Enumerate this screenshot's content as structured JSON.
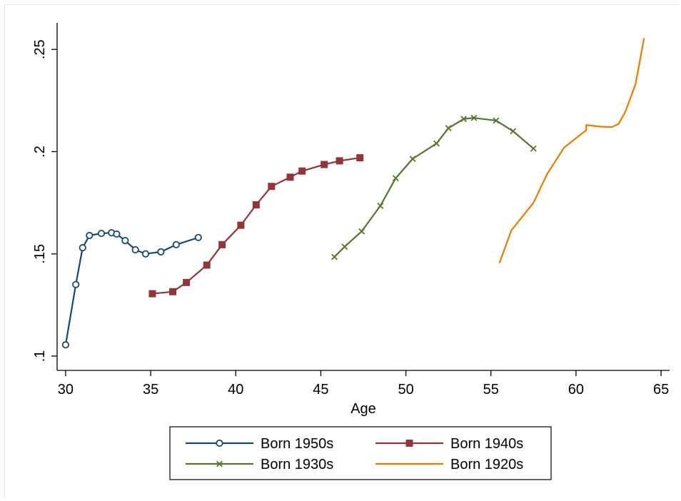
{
  "chart_data": {
    "type": "line",
    "title": "",
    "xlabel": "Age",
    "ylabel": "",
    "xlim": [
      29.5,
      65.5
    ],
    "ylim": [
      0.093,
      0.263
    ],
    "xticks": [
      30,
      35,
      40,
      45,
      50,
      55,
      60,
      65
    ],
    "xtick_labels": [
      "30",
      "35",
      "40",
      "45",
      "50",
      "55",
      "60",
      "65"
    ],
    "yticks": [
      0.1,
      0.15,
      0.2,
      0.25
    ],
    "ytick_labels": [
      ".1",
      ".15",
      ".2",
      ".25"
    ],
    "grid": false,
    "legend_position": "bottom",
    "series": [
      {
        "name": "Born 1950s",
        "color": "#1a476f",
        "marker": "hollow-circle",
        "points": [
          [
            30.0,
            0.1055
          ],
          [
            30.6,
            0.135
          ],
          [
            31.0,
            0.153
          ],
          [
            31.4,
            0.159
          ],
          [
            32.1,
            0.16
          ],
          [
            32.7,
            0.1603
          ],
          [
            33.0,
            0.1597
          ],
          [
            33.5,
            0.1565
          ],
          [
            34.1,
            0.152
          ],
          [
            34.7,
            0.15
          ],
          [
            35.6,
            0.151
          ],
          [
            36.5,
            0.1545
          ],
          [
            37.8,
            0.158
          ]
        ]
      },
      {
        "name": "Born 1940s",
        "color": "#90353b",
        "marker": "square",
        "points": [
          [
            35.1,
            0.1305
          ],
          [
            36.3,
            0.1315
          ],
          [
            37.1,
            0.136
          ],
          [
            38.3,
            0.1445
          ],
          [
            39.2,
            0.1545
          ],
          [
            40.3,
            0.164
          ],
          [
            41.2,
            0.174
          ],
          [
            42.1,
            0.183
          ],
          [
            43.2,
            0.1875
          ],
          [
            43.9,
            0.1905
          ],
          [
            45.2,
            0.1937
          ],
          [
            46.1,
            0.1955
          ],
          [
            47.3,
            0.197
          ]
        ]
      },
      {
        "name": "Born 1930s",
        "color": "#55752f",
        "marker": "x",
        "points": [
          [
            45.8,
            0.1485
          ],
          [
            46.4,
            0.1535
          ],
          [
            47.4,
            0.161
          ],
          [
            48.5,
            0.1735
          ],
          [
            49.4,
            0.187
          ],
          [
            50.4,
            0.1965
          ],
          [
            51.8,
            0.204
          ],
          [
            52.5,
            0.2115
          ],
          [
            53.4,
            0.216
          ],
          [
            54.0,
            0.2165
          ],
          [
            55.3,
            0.2152
          ],
          [
            56.3,
            0.21
          ],
          [
            57.5,
            0.2015
          ]
        ]
      },
      {
        "name": "Born 1920s",
        "color": "#e37e00",
        "marker": "none",
        "points": [
          [
            55.5,
            0.1455
          ],
          [
            56.2,
            0.1615
          ],
          [
            57.5,
            0.175
          ],
          [
            58.3,
            0.189
          ],
          [
            59.3,
            0.202
          ],
          [
            60.6,
            0.2105
          ],
          [
            60.6,
            0.213
          ],
          [
            61.5,
            0.2122
          ],
          [
            62.1,
            0.212
          ],
          [
            62.5,
            0.2135
          ],
          [
            62.9,
            0.2195
          ],
          [
            63.5,
            0.233
          ],
          [
            64.0,
            0.2555
          ]
        ]
      }
    ]
  }
}
